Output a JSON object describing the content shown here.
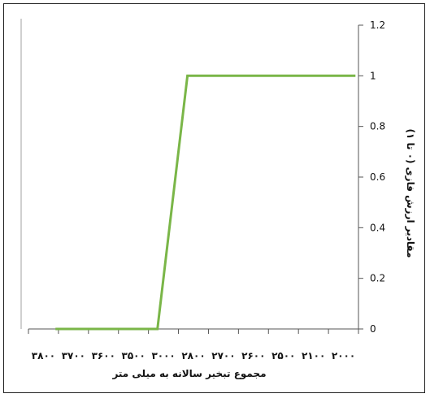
{
  "chart_data": {
    "type": "line",
    "title": "",
    "xlabel": "مجموع  تبخیر سالانه به میلی متر",
    "ylabel": "مقادیر  ارزش فازی (۰ تا ۱)",
    "x_axis_direction": "reversed",
    "y_axis_position": "right",
    "categories": [
      "۲۰۰۰",
      "۲۱۰۰",
      "۲۵۰۰",
      "۲۶۰۰",
      "۲۷۰۰",
      "۲۸۰۰",
      "۳۰۰۰",
      "۳۵۰۰",
      "۳۶۰۰",
      "۳۷۰۰",
      "۳۸۰۰"
    ],
    "x_domain": [
      0,
      11
    ],
    "ylim": [
      0,
      1.2
    ],
    "yticks": [
      "0",
      "0.2",
      "0.4",
      "0.6",
      "0.8",
      "1",
      "1.2"
    ],
    "ytick_values": [
      0,
      0.2,
      0.4,
      0.6,
      0.8,
      1.0,
      1.2
    ],
    "series": [
      {
        "color": "#7ab648",
        "points": [
          {
            "x": 0.1,
            "y": 1
          },
          {
            "x": 5.7,
            "y": 1
          },
          {
            "x": 6.7,
            "y": 0
          },
          {
            "x": 10.1,
            "y": 0
          }
        ]
      }
    ],
    "grid": false,
    "legend": "none"
  }
}
